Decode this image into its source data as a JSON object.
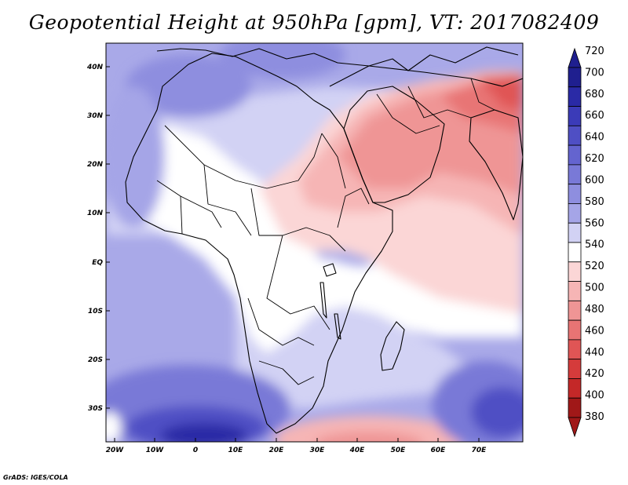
{
  "title": "Geopotential Height at 950hPa [gpm], VT: 2017082409",
  "credit": "GrADS: IGES/COLA",
  "map": {
    "lat_labels": [
      "40N",
      "30N",
      "20N",
      "10N",
      "EQ",
      "10S",
      "20S",
      "30S"
    ],
    "lon_labels": [
      "20W",
      "10W",
      "0",
      "10E",
      "20E",
      "30E",
      "40E",
      "50E",
      "60E",
      "70E"
    ]
  },
  "colorbar": {
    "levels": [
      "720",
      "700",
      "680",
      "660",
      "640",
      "620",
      "600",
      "580",
      "560",
      "540",
      "520",
      "500",
      "480",
      "460",
      "440",
      "420",
      "400",
      "380"
    ],
    "colors": [
      "#1f1f8f",
      "#2a2aa6",
      "#3b3bb8",
      "#4f4fc4",
      "#6464cf",
      "#7979d7",
      "#8e8edf",
      "#a5a5e7",
      "#d2d2f4",
      "#ffffff",
      "#fbd6d6",
      "#f6b5b5",
      "#ef9595",
      "#e87474",
      "#e05555",
      "#d53b3b",
      "#c42828",
      "#a01818"
    ]
  }
}
